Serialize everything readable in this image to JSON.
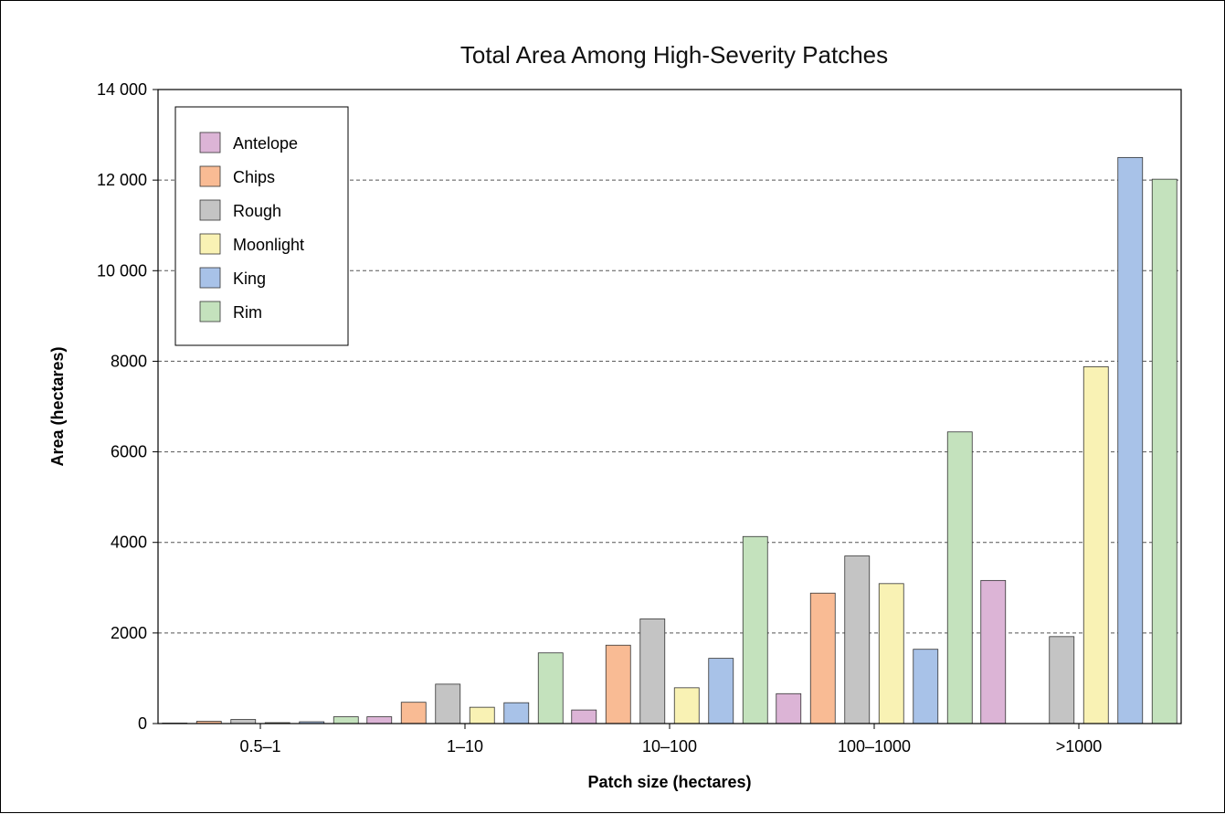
{
  "chart_data": {
    "type": "bar",
    "title": "Total Area Among High-Severity Patches",
    "xlabel": "Patch size (hectares)",
    "ylabel": "Area (hectares)",
    "categories": [
      "0.5–1",
      "1–10",
      "10–100",
      "100–1000",
      ">1000"
    ],
    "ylim": [
      0,
      14000
    ],
    "yticks": [
      0,
      2000,
      4000,
      6000,
      8000,
      10000,
      12000,
      14000
    ],
    "ytick_labels": [
      "0",
      "2000",
      "4000",
      "6000",
      "8000",
      "10 000",
      "12 000",
      "14 000"
    ],
    "grid": true,
    "legend_position": "top-left",
    "series": [
      {
        "name": "Antelope",
        "color": "#dcb4d6",
        "values": [
          10,
          150,
          300,
          660,
          3160
        ]
      },
      {
        "name": "Chips",
        "color": "#f9bb94",
        "values": [
          50,
          470,
          1730,
          2880,
          0
        ]
      },
      {
        "name": "Rough",
        "color": "#c4c4c4",
        "values": [
          90,
          870,
          2310,
          3700,
          1920
        ]
      },
      {
        "name": "Moonlight",
        "color": "#f9f2b4",
        "values": [
          20,
          360,
          790,
          3090,
          7880
        ]
      },
      {
        "name": "King",
        "color": "#a8c2e8",
        "values": [
          40,
          460,
          1440,
          1640,
          12500
        ]
      },
      {
        "name": "Rim",
        "color": "#c4e2bd",
        "values": [
          150,
          1560,
          4130,
          6440,
          12020
        ]
      }
    ]
  }
}
